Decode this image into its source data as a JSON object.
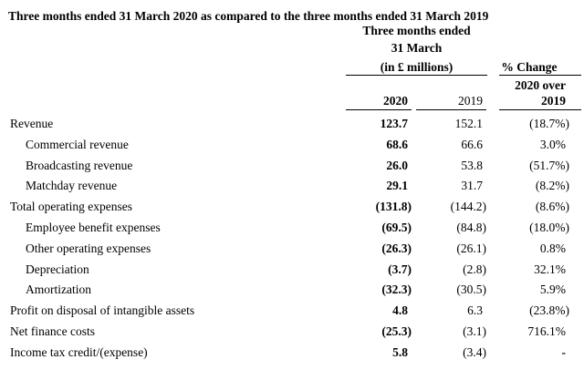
{
  "title": "Three months ended 31 March 2020 as compared to the three months ended 31 March 2019",
  "table": {
    "header": {
      "period_line1": "Three months ended",
      "period_line2": "31 March",
      "unit": "(in £ millions)",
      "pct_change": "% Change",
      "pct_sub": "2020 over",
      "col_2020": "2020",
      "col_2019": "2019",
      "pct_sub_year": "2019"
    },
    "rows": [
      {
        "label": "Revenue",
        "indent": false,
        "v2020": "123.7",
        "v2019": "152.1",
        "pct": "(18.7%)"
      },
      {
        "label": "Commercial revenue",
        "indent": true,
        "v2020": "68.6",
        "v2019": "66.6",
        "pct": "3.0%"
      },
      {
        "label": "Broadcasting revenue",
        "indent": true,
        "v2020": "26.0",
        "v2019": "53.8",
        "pct": "(51.7%)"
      },
      {
        "label": "Matchday revenue",
        "indent": true,
        "v2020": "29.1",
        "v2019": "31.7",
        "pct": "(8.2%)"
      },
      {
        "label": "Total operating expenses",
        "indent": false,
        "v2020": "(131.8)",
        "v2019": "(144.2)",
        "pct": "(8.6%)"
      },
      {
        "label": "Employee benefit expenses",
        "indent": true,
        "v2020": "(69.5)",
        "v2019": "(84.8)",
        "pct": "(18.0%)"
      },
      {
        "label": "Other operating expenses",
        "indent": true,
        "v2020": "(26.3)",
        "v2019": "(26.1)",
        "pct": "0.8%"
      },
      {
        "label": "Depreciation",
        "indent": true,
        "v2020": "(3.7)",
        "v2019": "(2.8)",
        "pct": "32.1%"
      },
      {
        "label": "Amortization",
        "indent": true,
        "v2020": "(32.3)",
        "v2019": "(30.5)",
        "pct": "5.9%"
      },
      {
        "label": "Profit on disposal of intangible assets",
        "indent": false,
        "v2020": "4.8",
        "v2019": "6.3",
        "pct": "(23.8%)"
      },
      {
        "label": "Net finance costs",
        "indent": false,
        "v2020": "(25.3)",
        "v2019": "(3.1)",
        "pct": "716.1%"
      },
      {
        "label": "Income tax credit/(expense)",
        "indent": false,
        "v2020": "5.8",
        "v2019": "(3.4)",
        "pct": "-"
      }
    ]
  },
  "colors": {
    "text": "#000000",
    "rule": "#000000",
    "background": "#ffffff"
  }
}
